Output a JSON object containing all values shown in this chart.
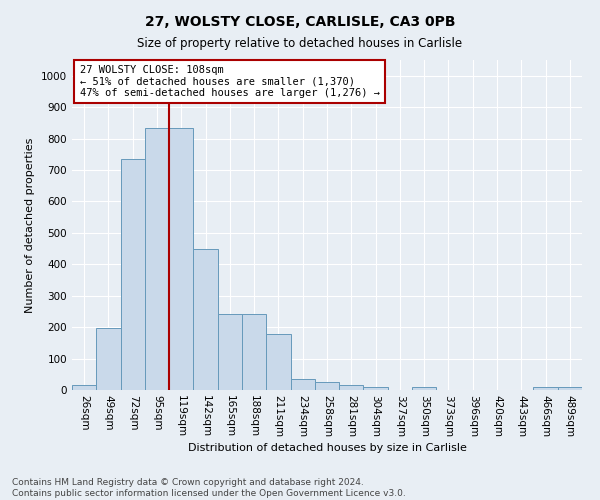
{
  "title_line1": "27, WOLSTY CLOSE, CARLISLE, CA3 0PB",
  "title_line2": "Size of property relative to detached houses in Carlisle",
  "xlabel": "Distribution of detached houses by size in Carlisle",
  "ylabel": "Number of detached properties",
  "footnote": "Contains HM Land Registry data © Crown copyright and database right 2024.\nContains public sector information licensed under the Open Government Licence v3.0.",
  "bar_labels": [
    "26sqm",
    "49sqm",
    "72sqm",
    "95sqm",
    "119sqm",
    "142sqm",
    "165sqm",
    "188sqm",
    "211sqm",
    "234sqm",
    "258sqm",
    "281sqm",
    "304sqm",
    "327sqm",
    "350sqm",
    "373sqm",
    "396sqm",
    "420sqm",
    "443sqm",
    "466sqm",
    "489sqm"
  ],
  "bar_values": [
    15,
    198,
    735,
    835,
    835,
    448,
    243,
    243,
    178,
    35,
    25,
    15,
    8,
    0,
    8,
    0,
    0,
    0,
    0,
    8,
    8
  ],
  "bar_color": "#c9d9ea",
  "bar_edgecolor": "#6699bb",
  "annotation_box_text": "27 WOLSTY CLOSE: 108sqm\n← 51% of detached houses are smaller (1,370)\n47% of semi-detached houses are larger (1,276) →",
  "vline_x": 3.5,
  "vline_color": "#aa0000",
  "ylim": [
    0,
    1050
  ],
  "yticks": [
    0,
    100,
    200,
    300,
    400,
    500,
    600,
    700,
    800,
    900,
    1000
  ],
  "background_color": "#e8eef4",
  "grid_color": "#ffffff",
  "title_fontsize": 10,
  "subtitle_fontsize": 8.5,
  "xlabel_fontsize": 8,
  "ylabel_fontsize": 8,
  "footnote_fontsize": 6.5,
  "tick_fontsize": 7.5
}
